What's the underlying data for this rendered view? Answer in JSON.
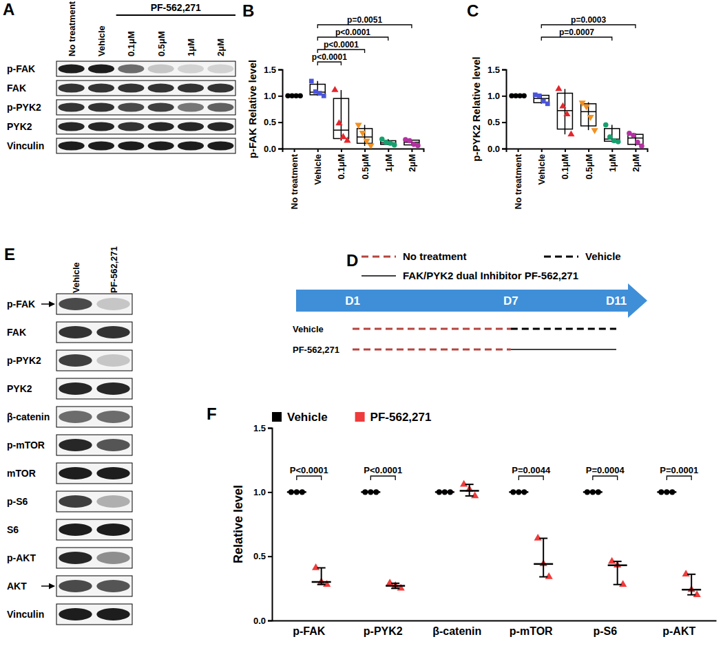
{
  "chart_data": [
    {
      "type": "box",
      "panel": "B",
      "y_label": "p-FAK Relative level",
      "categories": [
        "No treatment",
        "Vehicle",
        "0.1μM",
        "0.5μM",
        "1μM",
        "2μM"
      ],
      "ylim": [
        0,
        1.5
      ],
      "yticks": [
        {
          "value": 0,
          "label": "0.0"
        },
        {
          "value": 0.5,
          "label": "0.5"
        },
        {
          "value": 1,
          "label": "1.0"
        },
        {
          "value": 1.5,
          "label": "1.5"
        }
      ],
      "groups": [
        {
          "color": "#000000",
          "marker": "circle",
          "values": [
            1,
            1,
            1,
            1
          ],
          "box": {
            "min": 1,
            "q1": 1,
            "median": 1,
            "q3": 1,
            "max": 1
          }
        },
        {
          "color": "#4b55d8",
          "marker": "square",
          "values": [
            1.28,
            1.08,
            1.05,
            1.0
          ],
          "box": {
            "min": 1.0,
            "q1": 1.02,
            "median": 1.07,
            "q3": 1.22,
            "max": 1.28
          }
        },
        {
          "color": "#e3262d",
          "marker": "triangle",
          "values": [
            1.11,
            0.48,
            0.22,
            0.15
          ],
          "box": {
            "min": 0.15,
            "q1": 0.19,
            "median": 0.35,
            "q3": 0.95,
            "max": 1.11
          }
        },
        {
          "color": "#f39020",
          "marker": "triangle-down",
          "values": [
            0.45,
            0.3,
            0.15,
            0.06
          ],
          "box": {
            "min": 0.05,
            "q1": 0.1,
            "median": 0.22,
            "q3": 0.38,
            "max": 0.45
          }
        },
        {
          "color": "#17a06f",
          "marker": "circle",
          "values": [
            0.18,
            0.12,
            0.1,
            0.07
          ],
          "box": {
            "min": 0.07,
            "q1": 0.08,
            "median": 0.11,
            "q3": 0.15,
            "max": 0.18
          }
        },
        {
          "color": "#b2319f",
          "marker": "circle",
          "values": [
            0.17,
            0.15,
            0.08,
            0.06
          ],
          "box": {
            "min": 0.06,
            "q1": 0.07,
            "median": 0.12,
            "q3": 0.16,
            "max": 0.17
          }
        }
      ],
      "comparisons": [
        {
          "from": 1,
          "to": 2,
          "label": "p<0.0001"
        },
        {
          "from": 1,
          "to": 3,
          "label": "p<0.0001"
        },
        {
          "from": 1,
          "to": 4,
          "label": "p<0.0001"
        },
        {
          "from": 1,
          "to": 5,
          "label": "p=0.0051"
        }
      ]
    },
    {
      "type": "box",
      "panel": "C",
      "y_label": "p-PYK2 Relative level",
      "categories": [
        "No treatment",
        "Vehicle",
        "0.1μM",
        "0.5μM",
        "1μM",
        "2μM"
      ],
      "ylim": [
        0,
        1.5
      ],
      "yticks": [
        {
          "value": 0,
          "label": "0.0"
        },
        {
          "value": 0.5,
          "label": "0.5"
        },
        {
          "value": 1,
          "label": "1.0"
        },
        {
          "value": 1.5,
          "label": "1.5"
        }
      ],
      "groups": [
        {
          "color": "#000000",
          "marker": "circle",
          "values": [
            1,
            1,
            1,
            1
          ],
          "box": {
            "min": 1,
            "q1": 1,
            "median": 1,
            "q3": 1,
            "max": 1
          }
        },
        {
          "color": "#4b55d8",
          "marker": "square",
          "values": [
            1.02,
            1.0,
            0.9,
            0.85
          ],
          "box": {
            "min": 0.85,
            "q1": 0.87,
            "median": 0.95,
            "q3": 1.01,
            "max": 1.02
          }
        },
        {
          "color": "#e3262d",
          "marker": "triangle",
          "values": [
            1.13,
            0.8,
            0.65,
            0.27
          ],
          "box": {
            "min": 0.27,
            "q1": 0.37,
            "median": 0.72,
            "q3": 1.05,
            "max": 1.13
          }
        },
        {
          "color": "#f39020",
          "marker": "triangle-down",
          "values": [
            0.87,
            0.8,
            0.6,
            0.35
          ],
          "box": {
            "min": 0.35,
            "q1": 0.43,
            "median": 0.7,
            "q3": 0.85,
            "max": 0.88
          }
        },
        {
          "color": "#17a06f",
          "marker": "circle",
          "values": [
            0.45,
            0.22,
            0.15,
            0.13
          ],
          "box": {
            "min": 0.12,
            "q1": 0.14,
            "median": 0.18,
            "q3": 0.38,
            "max": 0.45
          }
        },
        {
          "color": "#b2319f",
          "marker": "circle",
          "values": [
            0.29,
            0.25,
            0.12,
            0.05
          ],
          "box": {
            "min": 0.05,
            "q1": 0.08,
            "median": 0.2,
            "q3": 0.27,
            "max": 0.29
          }
        }
      ],
      "comparisons": [
        {
          "from": 1,
          "to": 4,
          "label": "p=0.0007"
        },
        {
          "from": 1,
          "to": 5,
          "label": "p=0.0003"
        }
      ]
    },
    {
      "type": "dot",
      "panel": "F",
      "y_label": "Relative level",
      "legend": "top-left",
      "categories": [
        "p-FAK",
        "p-PYK2",
        "β-catenin",
        "p-mTOR",
        "p-S6",
        "p-AKT"
      ],
      "ylim": [
        0,
        1.5
      ],
      "yticks": [
        {
          "value": 0,
          "label": "0.0"
        },
        {
          "value": 0.5,
          "label": "0.5"
        },
        {
          "value": 1,
          "label": "1.0"
        },
        {
          "value": 1.5,
          "label": "1.5"
        }
      ],
      "series": [
        {
          "name": "Vehicle",
          "color": "#000000",
          "marker": "circle",
          "values": [
            [
              1,
              1,
              1
            ],
            [
              1,
              1,
              1
            ],
            [
              1,
              1,
              1
            ],
            [
              1,
              1,
              1
            ],
            [
              1,
              1,
              1
            ],
            [
              1,
              1,
              1
            ]
          ],
          "median": [
            1,
            1,
            1,
            1,
            1,
            1
          ],
          "range": [
            [
              1,
              1
            ],
            [
              1,
              1
            ],
            [
              1,
              1
            ],
            [
              1,
              1
            ],
            [
              1,
              1
            ],
            [
              1,
              1
            ]
          ]
        },
        {
          "name": "PF-562,271",
          "color": "#ee3b3b",
          "marker": "triangle",
          "values": [
            [
              0.41,
              0.3,
              0.28
            ],
            [
              0.29,
              0.27,
              0.25
            ],
            [
              1.06,
              1.02,
              0.97
            ],
            [
              0.64,
              0.44,
              0.34
            ],
            [
              0.46,
              0.43,
              0.28
            ],
            [
              0.36,
              0.24,
              0.2
            ]
          ],
          "median": [
            0.3,
            0.27,
            1.01,
            0.44,
            0.43,
            0.24
          ],
          "range": [
            [
              0.28,
              0.41
            ],
            [
              0.25,
              0.29
            ],
            [
              0.97,
              1.06
            ],
            [
              0.34,
              0.64
            ],
            [
              0.28,
              0.46
            ],
            [
              0.2,
              0.36
            ]
          ]
        }
      ],
      "p_values": [
        "P<0.0001",
        "P<0.0001",
        null,
        "P=0.0044",
        "P=0.0004",
        "P=0.0001"
      ]
    }
  ],
  "blots": [
    {
      "panel": "A",
      "lanes": [
        "No treatment",
        "Vehicle",
        "0.1μM",
        "0.5μM",
        "1μM",
        "2μM"
      ],
      "lane_groups": [
        {
          "label": "PF-562,271",
          "from": 2,
          "to": 5
        }
      ],
      "rows": [
        {
          "label": "p-FAK",
          "bands": [
            0.95,
            0.95,
            0.6,
            0.2,
            0.15,
            0.15
          ]
        },
        {
          "label": "FAK",
          "bands": [
            0.85,
            0.85,
            0.85,
            0.85,
            0.85,
            0.85
          ]
        },
        {
          "label": "p-PYK2",
          "bands": [
            0.85,
            0.85,
            0.75,
            0.8,
            0.55,
            0.65
          ]
        },
        {
          "label": "PYK2",
          "bands": [
            0.9,
            0.9,
            0.85,
            0.9,
            0.9,
            0.9
          ]
        },
        {
          "label": "Vinculin",
          "bands": [
            0.95,
            0.95,
            0.95,
            0.95,
            0.95,
            0.95
          ]
        }
      ]
    },
    {
      "panel": "E",
      "lanes": [
        "Vehicle",
        "PF-562,271"
      ],
      "lane_groups": [],
      "rows": [
        {
          "label": "p-FAK",
          "arrow": true,
          "bands": [
            0.75,
            0.2
          ]
        },
        {
          "label": "FAK",
          "bands": [
            0.85,
            0.85
          ]
        },
        {
          "label": "p-PYK2",
          "bands": [
            0.8,
            0.2
          ]
        },
        {
          "label": "PYK2",
          "bands": [
            0.9,
            0.9
          ]
        },
        {
          "label": "β-catenin",
          "bands": [
            0.6,
            0.6
          ]
        },
        {
          "label": "p-mTOR",
          "bands": [
            0.9,
            0.7
          ]
        },
        {
          "label": "mTOR",
          "bands": [
            0.95,
            0.95
          ]
        },
        {
          "label": "p-S6",
          "bands": [
            0.8,
            0.3
          ]
        },
        {
          "label": "S6",
          "bands": [
            0.95,
            0.95
          ]
        },
        {
          "label": "p-AKT",
          "bands": [
            0.9,
            0.45
          ]
        },
        {
          "label": "AKT",
          "arrow": true,
          "bands": [
            0.75,
            0.7
          ]
        },
        {
          "label": "Vinculin",
          "bands": [
            0.95,
            0.95
          ]
        }
      ]
    }
  ],
  "timeline": {
    "panel": "D",
    "legend": [
      {
        "label": "No treatment",
        "color": "#b5443f",
        "line_style": "dashed"
      },
      {
        "label": "Vehicle",
        "color": "#000000",
        "line_style": "dashed"
      },
      {
        "label": "FAK/PYK2 dual Inhibitor PF-562,271",
        "color": "#000000",
        "line_style": "solid"
      }
    ],
    "range": [
      1,
      11
    ],
    "days": [
      {
        "value": 1,
        "label": "D1"
      },
      {
        "value": 7,
        "label": "D7"
      },
      {
        "value": 11,
        "label": "D11"
      }
    ],
    "rows": [
      {
        "label": "Vehicle",
        "segments": [
          {
            "from": 1,
            "to": 7,
            "style": 0
          },
          {
            "from": 7,
            "to": 11,
            "style": 1
          }
        ]
      },
      {
        "label": "PF-562,271",
        "segments": [
          {
            "from": 1,
            "to": 7,
            "style": 0
          },
          {
            "from": 7,
            "to": 11,
            "style": 2
          }
        ]
      }
    ]
  }
}
